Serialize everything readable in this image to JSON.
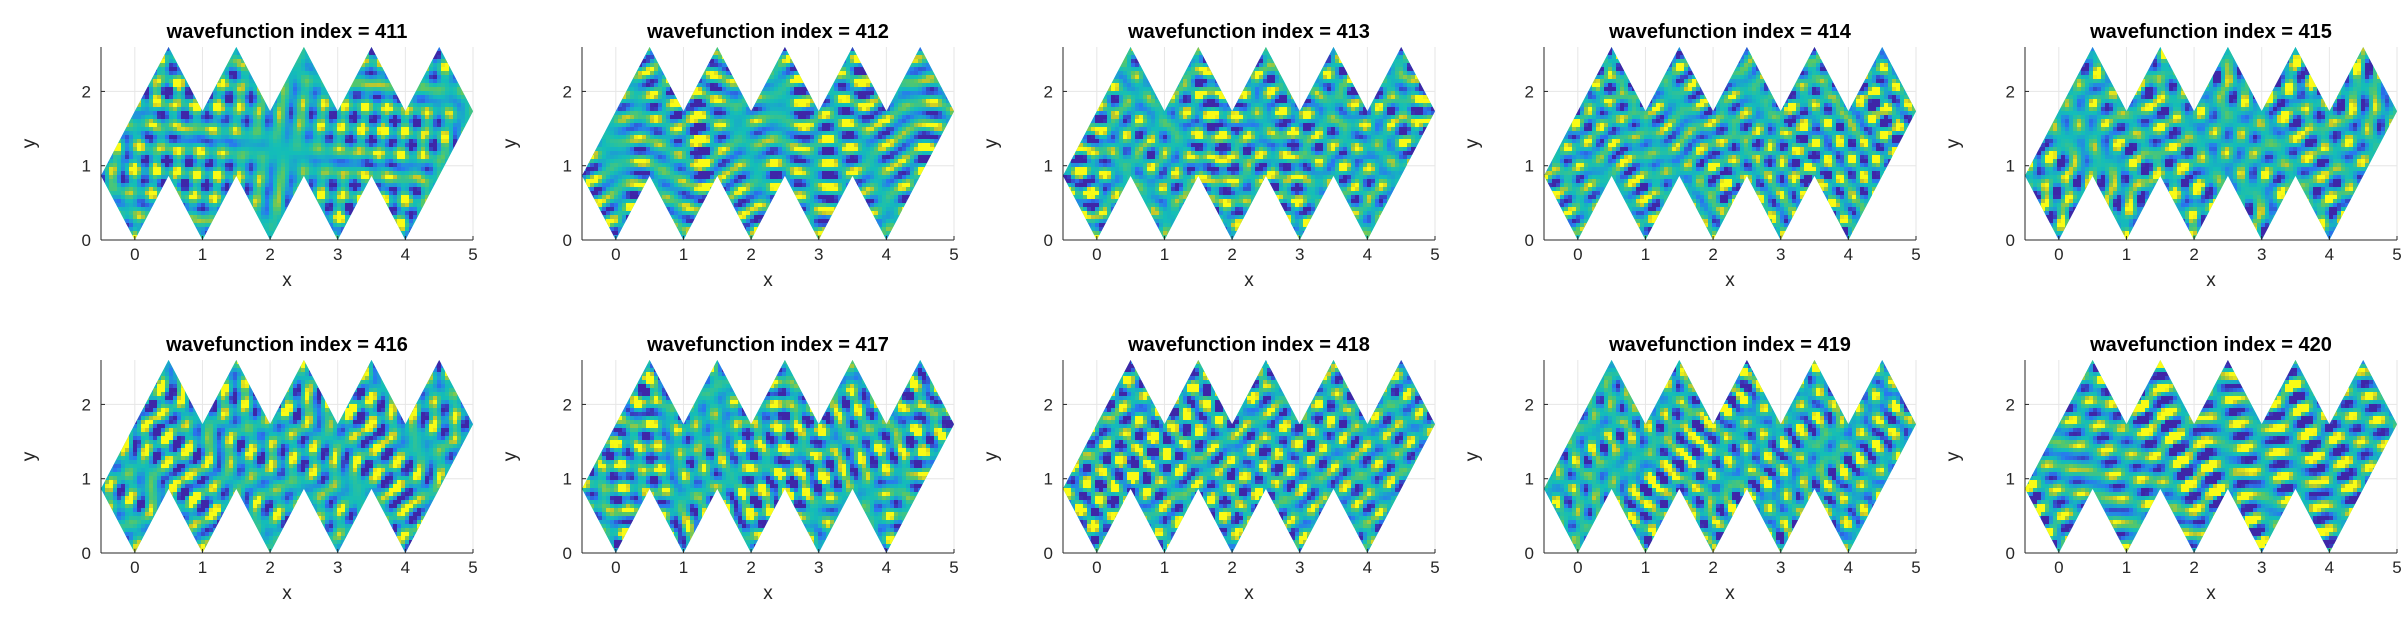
{
  "chart_data": {
    "type": "heatmap",
    "xlabel": "x",
    "ylabel": "y",
    "xlim": [
      -0.5,
      5
    ],
    "ylim": [
      0,
      2.598
    ],
    "x_ticks": [
      0,
      1,
      2,
      3,
      4,
      5
    ],
    "y_ticks": [
      0,
      1,
      2
    ],
    "grid": true,
    "colormap": "parula",
    "colors": {
      "low": "#3e26a8",
      "mid": "#13beb8",
      "high": "#f9fb15",
      "background": "#ffffff",
      "grid": "#e6e6e6"
    },
    "domain": "zigzag strip of equilateral rhombi (side 1, 60 degrees)",
    "panels": [
      {
        "title": "wavefunction index = 411",
        "index": 411
      },
      {
        "title": "wavefunction index = 412",
        "index": 412
      },
      {
        "title": "wavefunction index = 413",
        "index": 413
      },
      {
        "title": "wavefunction index = 414",
        "index": 414
      },
      {
        "title": "wavefunction index = 415",
        "index": 415
      },
      {
        "title": "wavefunction index = 416",
        "index": 416
      },
      {
        "title": "wavefunction index = 417",
        "index": 417
      },
      {
        "title": "wavefunction index = 418",
        "index": 418
      },
      {
        "title": "wavefunction index = 419",
        "index": 419
      },
      {
        "title": "wavefunction index = 420",
        "index": 420
      }
    ]
  }
}
